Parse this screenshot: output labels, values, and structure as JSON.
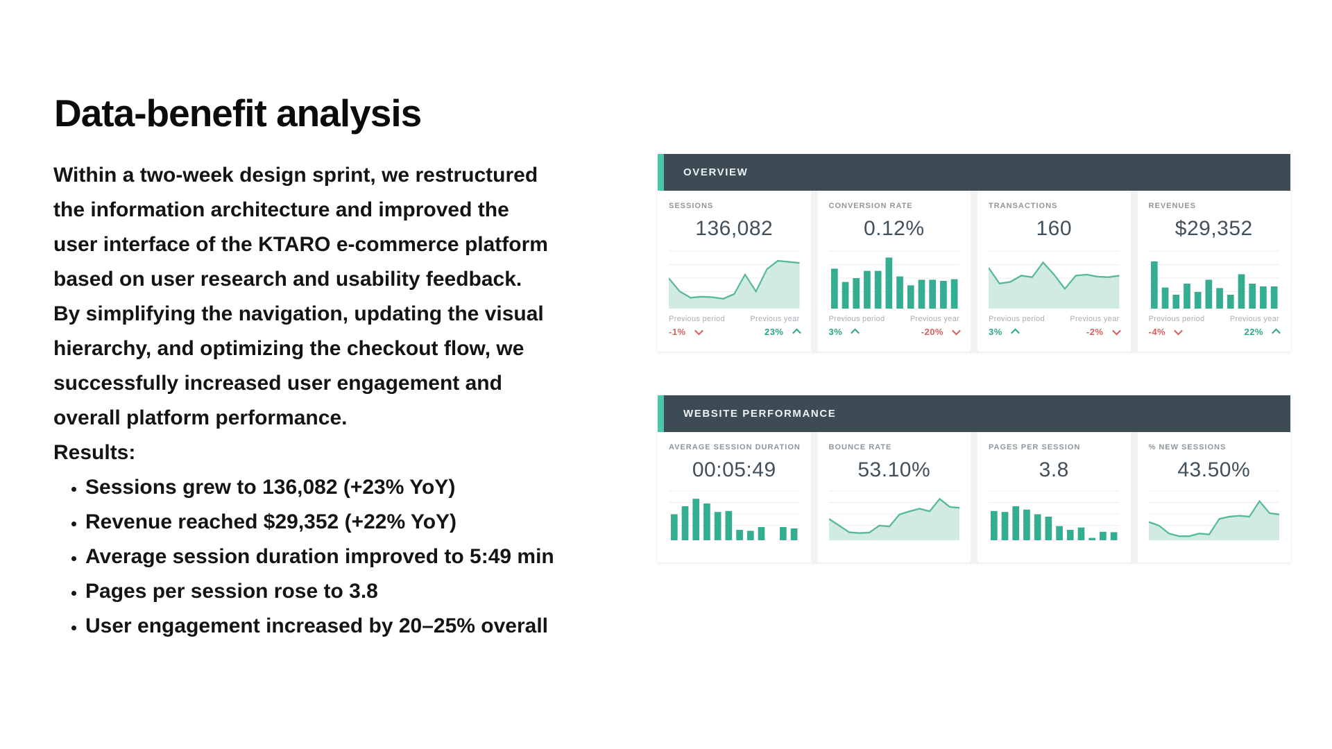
{
  "slide": {
    "title": "Data-benefit analysis",
    "paragraph_lines": [
      "Within a two-week design sprint, we restructured",
      "the information architecture and improved the",
      "user interface of the KTARO e-commerce platform",
      "based on user research and usability feedback.",
      "By simplifying the navigation, updating the visual",
      "hierarchy, and optimizing the checkout flow, we",
      "successfully increased user engagement and",
      "overall platform performance.",
      "Results:"
    ],
    "bullets": [
      "Sessions grew to 136,082 (+23% YoY)",
      "Revenue reached $29,352 (+22% YoY)",
      "Average session duration improved to 5:49 min",
      "Pages per session rose to 3.8",
      "User engagement increased by 20–25% overall"
    ]
  },
  "dashboard": {
    "colors": {
      "header_bg": "#3d4b55",
      "accent": "#4cc7ac",
      "bar": "#35ad90",
      "line": "#57b99c",
      "area_fill": "#d2ebe0",
      "trend_up": "#2aa886",
      "trend_down": "#d95f5f"
    },
    "panels": [
      {
        "title": "OVERVIEW",
        "cards": [
          {
            "label": "SESSIONS",
            "value": "136,082",
            "chart": {
              "type": "area",
              "values": [
                0.55,
                0.3,
                0.18,
                0.2,
                0.19,
                0.16,
                0.25,
                0.62,
                0.3,
                0.72,
                0.88,
                0.86,
                0.84
              ]
            },
            "footer": {
              "prev_period": {
                "label": "Previous period",
                "value": "-1%",
                "trend": "down"
              },
              "prev_year": {
                "label": "Previous year",
                "value": "23%",
                "trend": "up"
              }
            }
          },
          {
            "label": "CONVERSION RATE",
            "value": "0.12%",
            "chart": {
              "type": "bar",
              "values": [
                0.72,
                0.48,
                0.55,
                0.68,
                0.68,
                0.92,
                0.58,
                0.42,
                0.52,
                0.52,
                0.5,
                0.53
              ]
            },
            "footer": {
              "prev_period": {
                "label": "Previous period",
                "value": "3%",
                "trend": "up"
              },
              "prev_year": {
                "label": "Previous year",
                "value": "-20%",
                "trend": "down"
              }
            }
          },
          {
            "label": "TRANSACTIONS",
            "value": "160",
            "chart": {
              "type": "area",
              "values": [
                0.75,
                0.45,
                0.48,
                0.6,
                0.57,
                0.85,
                0.62,
                0.35,
                0.6,
                0.62,
                0.58,
                0.57,
                0.6
              ]
            },
            "footer": {
              "prev_period": {
                "label": "Previous period",
                "value": "3%",
                "trend": "up"
              },
              "prev_year": {
                "label": "Previous year",
                "value": "-2%",
                "trend": "down"
              }
            }
          },
          {
            "label": "REVENUES",
            "value": "$29,352",
            "chart": {
              "type": "bar",
              "values": [
                0.85,
                0.38,
                0.25,
                0.45,
                0.3,
                0.52,
                0.37,
                0.25,
                0.62,
                0.45,
                0.4,
                0.4
              ]
            },
            "footer": {
              "prev_period": {
                "label": "Previous period",
                "value": "-4%",
                "trend": "down"
              },
              "prev_year": {
                "label": "Previous year",
                "value": "22%",
                "trend": "up"
              }
            }
          }
        ]
      },
      {
        "title": "WEBSITE PERFORMANCE",
        "cards": [
          {
            "label": "AVERAGE SESSION DURATION",
            "value": "00:05:49",
            "chart": {
              "type": "bar",
              "values": [
                0.55,
                0.72,
                0.88,
                0.78,
                0.6,
                0.62,
                0.22,
                0.2,
                0.28,
                0,
                0.28,
                0.25
              ]
            }
          },
          {
            "label": "BOUNCE RATE",
            "value": "53.10%",
            "chart": {
              "type": "area",
              "values": [
                0.45,
                0.3,
                0.15,
                0.13,
                0.14,
                0.3,
                0.28,
                0.55,
                0.62,
                0.68,
                0.62,
                0.9,
                0.72,
                0.7
              ]
            }
          },
          {
            "label": "PAGES PER SESSION",
            "value": "3.8",
            "chart": {
              "type": "bar",
              "values": [
                0.62,
                0.6,
                0.72,
                0.65,
                0.55,
                0.5,
                0.3,
                0.22,
                0.27,
                0.05,
                0.18,
                0.17
              ]
            }
          },
          {
            "label": "% NEW SESSIONS",
            "value": "43.50%",
            "chart": {
              "type": "area",
              "values": [
                0.38,
                0.3,
                0.12,
                0.06,
                0.06,
                0.12,
                0.1,
                0.45,
                0.5,
                0.52,
                0.5,
                0.85,
                0.58,
                0.55
              ]
            }
          }
        ]
      }
    ]
  }
}
